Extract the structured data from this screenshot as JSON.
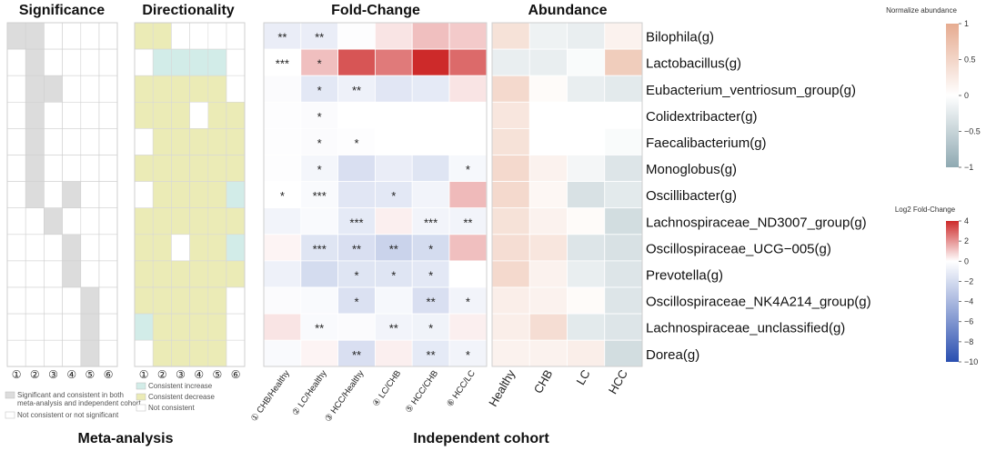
{
  "panels": {
    "significance": "Significance",
    "directionality": "Directionality",
    "fold_change": "Fold-Change",
    "abundance": "Abundance"
  },
  "groups": {
    "meta": "Meta-analysis",
    "independent": "Independent cohort"
  },
  "column_numbers": [
    "①",
    "②",
    "③",
    "④",
    "⑤",
    "⑥"
  ],
  "genera": [
    "Bilophila(g)",
    "Lactobacillus(g)",
    "Eubacterium_ventriosum_group(g)",
    "Colidextribacter(g)",
    "Faecalibacterium(g)",
    "Monoglobus(g)",
    "Oscillibacter(g)",
    "Lachnospiraceae_ND3007_group(g)",
    "Oscillospiraceae_UCG−005(g)",
    "Prevotella(g)",
    "Oscillospiraceae_NK4A214_group(g)",
    "Lachnospiraceae_unclassified(g)",
    "Dorea(g)"
  ],
  "legends": {
    "significance": {
      "items": [
        {
          "label": "Significant and consistent in both meta-analysis and independent cohort",
          "color": "#dcdcdc"
        },
        {
          "label": "Not consistent or not significant",
          "color": "#ffffff"
        }
      ]
    },
    "directionality": {
      "items": [
        {
          "label": "Consistent increase",
          "color": "#d2ece8"
        },
        {
          "label": "Consistent decrease",
          "color": "#ebebb6"
        },
        {
          "label": "Not consistent",
          "color": "#ffffff"
        }
      ]
    },
    "abundance": {
      "title": "Normalize abundance",
      "ticks": [
        "1",
        "0.5",
        "0",
        "−0.5",
        "−1"
      ]
    },
    "fold_change": {
      "title": "Log2 Fold-Change",
      "ticks": [
        "4",
        "2",
        "0",
        "−2",
        "−4",
        "−6",
        "−8",
        "−10"
      ]
    }
  },
  "chart_data": [
    {
      "type": "heatmap",
      "title": "Significance",
      "x_labels": [
        "①",
        "②",
        "③",
        "④",
        "⑤",
        "⑥"
      ],
      "y_labels": [
        "Bilophila(g)",
        "Lactobacillus(g)",
        "Eubacterium_ventriosum_group(g)",
        "Colidextribacter(g)",
        "Faecalibacterium(g)",
        "Monoglobus(g)",
        "Oscillibacter(g)",
        "Lachnospiraceae_ND3007_group(g)",
        "Oscillospiraceae_UCG−005(g)",
        "Prevotella(g)",
        "Oscillospiraceae_NK4A214_group(g)",
        "Lachnospiraceae_unclassified(g)",
        "Dorea(g)"
      ],
      "values": [
        [
          1,
          1,
          0,
          0,
          0,
          0
        ],
        [
          0,
          1,
          0,
          0,
          0,
          0
        ],
        [
          0,
          1,
          1,
          0,
          0,
          0
        ],
        [
          0,
          1,
          0,
          0,
          0,
          0
        ],
        [
          0,
          1,
          0,
          0,
          0,
          0
        ],
        [
          0,
          1,
          0,
          0,
          0,
          0
        ],
        [
          0,
          1,
          0,
          1,
          0,
          0
        ],
        [
          0,
          0,
          1,
          0,
          0,
          0
        ],
        [
          0,
          0,
          0,
          1,
          0,
          0
        ],
        [
          0,
          0,
          0,
          1,
          0,
          0
        ],
        [
          0,
          0,
          0,
          0,
          1,
          0
        ],
        [
          0,
          0,
          0,
          0,
          1,
          0
        ],
        [
          0,
          0,
          0,
          0,
          1,
          0
        ]
      ]
    },
    {
      "type": "heatmap",
      "title": "Directionality",
      "x_labels": [
        "①",
        "②",
        "③",
        "④",
        "⑤",
        "⑥"
      ],
      "y_labels": [
        "Bilophila(g)",
        "Lactobacillus(g)",
        "Eubacterium_ventriosum_group(g)",
        "Colidextribacter(g)",
        "Faecalibacterium(g)",
        "Monoglobus(g)",
        "Oscillibacter(g)",
        "Lachnospiraceae_ND3007_group(g)",
        "Oscillospiraceae_UCG−005(g)",
        "Prevotella(g)",
        "Oscillospiraceae_NK4A214_group(g)",
        "Lachnospiraceae_unclassified(g)",
        "Dorea(g)"
      ],
      "values": [
        [
          "D",
          "D",
          "N",
          "N",
          "N",
          "N"
        ],
        [
          "N",
          "I",
          "I",
          "I",
          "I",
          "N"
        ],
        [
          "D",
          "D",
          "D",
          "D",
          "D",
          "N"
        ],
        [
          "D",
          "D",
          "D",
          "N",
          "D",
          "D"
        ],
        [
          "N",
          "D",
          "D",
          "D",
          "D",
          "D"
        ],
        [
          "D",
          "D",
          "D",
          "D",
          "D",
          "D"
        ],
        [
          "N",
          "D",
          "D",
          "D",
          "D",
          "I"
        ],
        [
          "D",
          "D",
          "D",
          "D",
          "D",
          "D"
        ],
        [
          "D",
          "D",
          "N",
          "D",
          "D",
          "I"
        ],
        [
          "D",
          "D",
          "D",
          "D",
          "D",
          "D"
        ],
        [
          "D",
          "D",
          "D",
          "D",
          "D",
          "N"
        ],
        [
          "I",
          "D",
          "D",
          "D",
          "D",
          "N"
        ],
        [
          "N",
          "D",
          "D",
          "D",
          "D",
          "N"
        ]
      ]
    },
    {
      "type": "heatmap",
      "title": "Fold-Change",
      "x_labels": [
        "① CHB/Healthy",
        "② LC/Healthy",
        "③ HCC/Healthy",
        "④ LC/CHB",
        "⑤ HCC/CHB",
        "⑥ HCC/LC"
      ],
      "y_labels": [
        "Bilophila(g)",
        "Lactobacillus(g)",
        "Eubacterium_ventriosum_group(g)",
        "Colidextribacter(g)",
        "Faecalibacterium(g)",
        "Monoglobus(g)",
        "Oscillibacter(g)",
        "Lachnospiraceae_ND3007_group(g)",
        "Oscillospiraceae_UCG−005(g)",
        "Prevotella(g)",
        "Oscillospiraceae_NK4A214_group(g)",
        "Lachnospiraceae_unclassified(g)",
        "Dorea(g)"
      ],
      "vmin": -10,
      "vmax": 4,
      "values": [
        [
          -1.0,
          -1.0,
          -0.1,
          0.5,
          1.2,
          1.0
        ],
        [
          0.0,
          1.2,
          3.2,
          2.5,
          4.2,
          2.8
        ],
        [
          -0.2,
          -1.3,
          -0.8,
          -1.4,
          -1.2,
          0.5
        ],
        [
          -0.1,
          -0.2,
          0.0,
          0.0,
          0.0,
          0.0
        ],
        [
          -0.1,
          -0.2,
          -0.1,
          0.0,
          0.0,
          0.0
        ],
        [
          -0.1,
          -0.5,
          -1.8,
          -1.0,
          -1.5,
          -0.4
        ],
        [
          0.0,
          -0.3,
          -1.4,
          -1.3,
          -0.6,
          1.3
        ],
        [
          -0.6,
          -0.3,
          -1.2,
          0.3,
          -0.6,
          -0.6
        ],
        [
          0.2,
          -1.5,
          -1.8,
          -2.5,
          -2.0,
          1.2
        ],
        [
          -0.8,
          -2.0,
          -1.5,
          -1.5,
          -1.3,
          0.0
        ],
        [
          -0.2,
          -0.3,
          -1.7,
          -0.4,
          -1.8,
          -0.6
        ],
        [
          0.5,
          -0.3,
          -0.2,
          -0.6,
          -0.7,
          0.3
        ],
        [
          -0.3,
          0.2,
          -1.8,
          0.3,
          -1.2,
          -0.6
        ]
      ],
      "significance": [
        [
          "**",
          "**",
          "",
          "",
          "",
          ""
        ],
        [
          "***",
          "*",
          "",
          "",
          "",
          ""
        ],
        [
          "",
          "*",
          "**",
          "",
          "",
          ""
        ],
        [
          "",
          "*",
          "",
          "",
          "",
          ""
        ],
        [
          "",
          "*",
          "*",
          "",
          "",
          ""
        ],
        [
          "",
          "*",
          "",
          "",
          "",
          "*"
        ],
        [
          "*",
          "***",
          "",
          "*",
          "",
          ""
        ],
        [
          "",
          "",
          "***",
          "",
          "***",
          "**"
        ],
        [
          "",
          "***",
          "**",
          "**",
          "*",
          ""
        ],
        [
          "",
          "",
          "*",
          "*",
          "*",
          ""
        ],
        [
          "",
          "",
          "*",
          "",
          "**",
          "*"
        ],
        [
          "",
          "**",
          "",
          "**",
          "*",
          ""
        ],
        [
          "",
          "",
          "**",
          "",
          "**",
          "*"
        ]
      ]
    },
    {
      "type": "heatmap",
      "title": "Abundance",
      "x_labels": [
        "Healthy",
        "CHB",
        "LC",
        "HCC"
      ],
      "y_labels": [
        "Bilophila(g)",
        "Lactobacillus(g)",
        "Eubacterium_ventriosum_group(g)",
        "Colidextribacter(g)",
        "Faecalibacterium(g)",
        "Monoglobus(g)",
        "Oscillibacter(g)",
        "Lachnospiraceae_ND3007_group(g)",
        "Oscillospiraceae_UCG−005(g)",
        "Prevotella(g)",
        "Oscillospiraceae_NK4A214_group(g)",
        "Lachnospiraceae_unclassified(g)",
        "Dorea(g)"
      ],
      "vmin": -1,
      "vmax": 1,
      "values": [
        [
          0.35,
          -0.15,
          -0.2,
          0.15
        ],
        [
          -0.2,
          -0.2,
          -0.05,
          0.6
        ],
        [
          0.45,
          0.05,
          -0.2,
          -0.25
        ],
        [
          0.3,
          0.0,
          0.0,
          0.0
        ],
        [
          0.35,
          0.0,
          0.0,
          -0.05
        ],
        [
          0.45,
          0.15,
          -0.1,
          -0.3
        ],
        [
          0.45,
          0.1,
          -0.35,
          -0.25
        ],
        [
          0.35,
          0.15,
          0.05,
          -0.4
        ],
        [
          0.4,
          0.3,
          -0.3,
          -0.35
        ],
        [
          0.45,
          0.15,
          -0.2,
          -0.3
        ],
        [
          0.2,
          0.15,
          0.05,
          -0.3
        ],
        [
          0.2,
          0.4,
          -0.25,
          -0.3
        ],
        [
          0.15,
          0.15,
          0.2,
          -0.4
        ]
      ]
    }
  ]
}
